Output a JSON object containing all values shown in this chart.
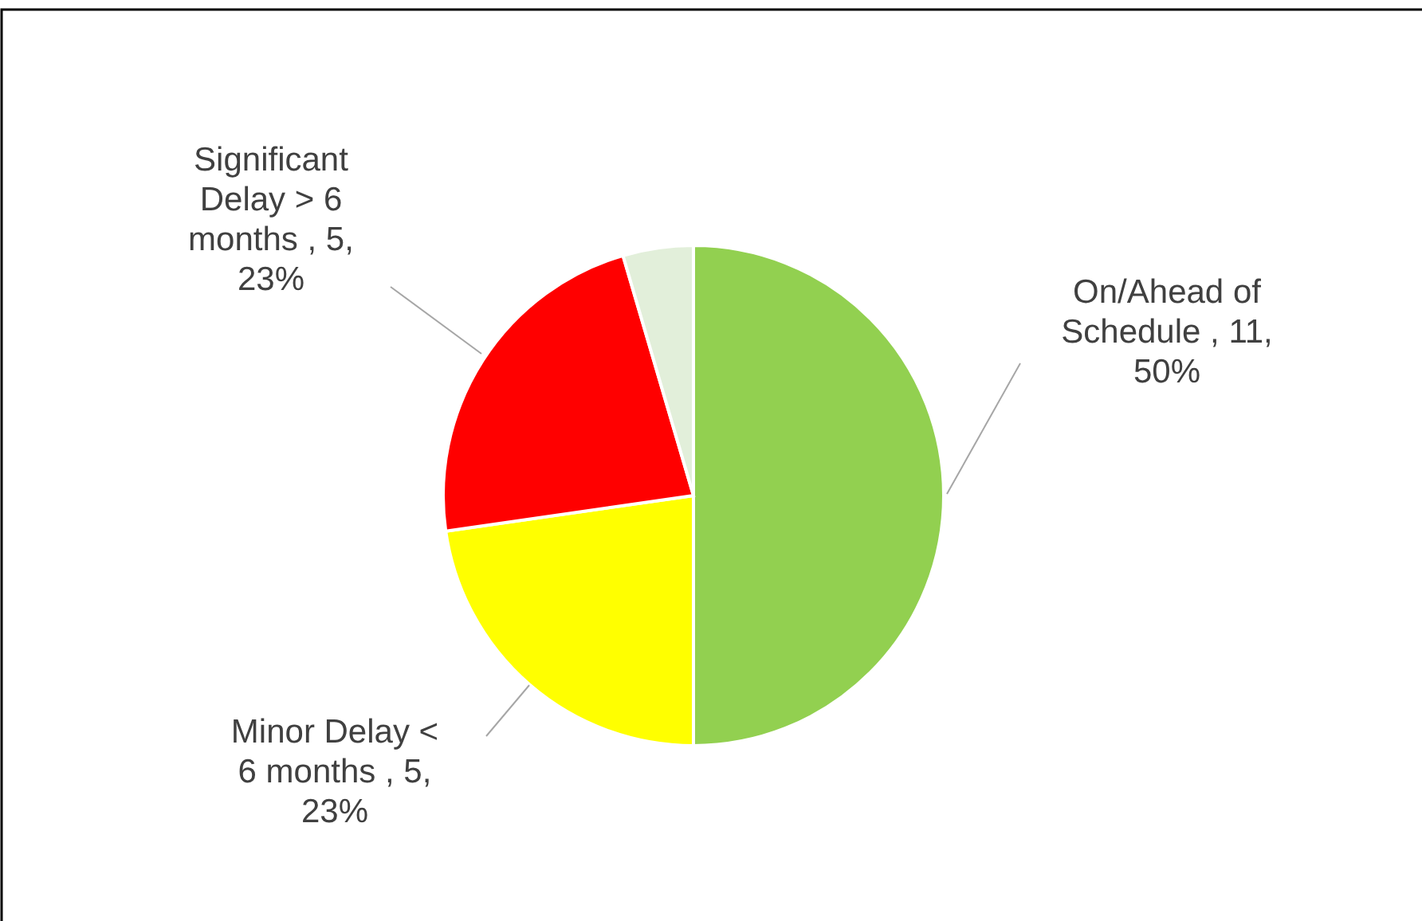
{
  "chart_data": {
    "type": "pie",
    "categories": [
      "On/Ahead of Schedule",
      "Minor Delay < 6 months",
      "Significant Delay > 6 months",
      null
    ],
    "values": [
      11,
      5,
      5,
      1
    ],
    "colors": [
      "#92d050",
      "#ffff00",
      "#ff0000",
      "#e2efda"
    ],
    "value_labels": [
      "11, 50%",
      "5, 23%",
      "5, 23%",
      null
    ]
  }
}
